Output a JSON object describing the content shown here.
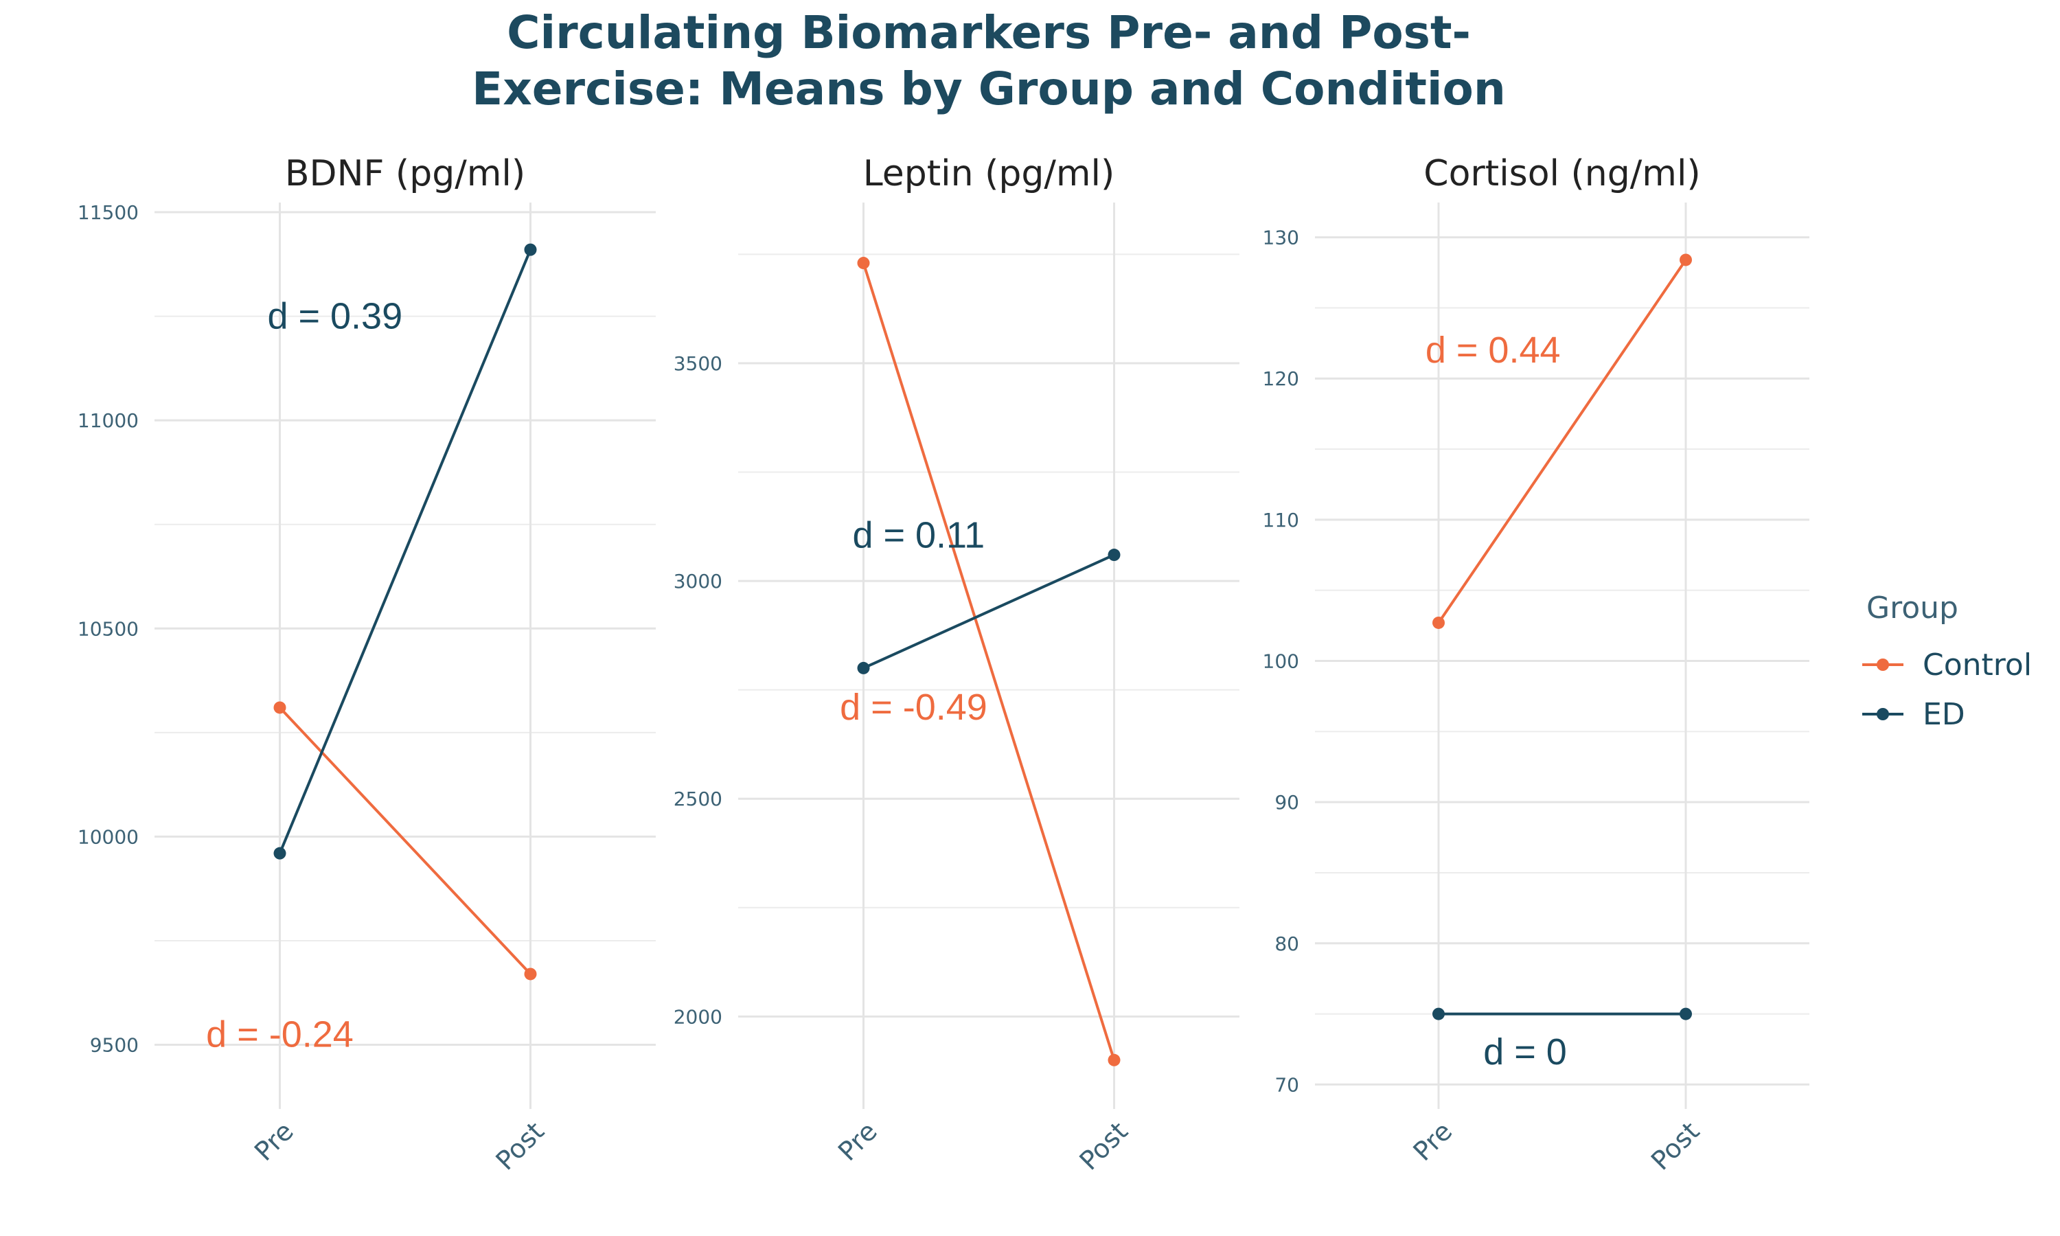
{
  "title_lines": [
    "Circulating Biomarkers Pre- and Post-",
    "Exercise: Means by Group and Condition"
  ],
  "colors": {
    "Control": "#ef6b3f",
    "ED": "#1a4a60"
  },
  "legend": {
    "title": "Group",
    "items": [
      "Control",
      "ED"
    ]
  },
  "chart_data": [
    {
      "type": "line",
      "title": "BDNF (pg/ml)",
      "categories": [
        "Pre",
        "Post"
      ],
      "ylim": [
        9425,
        11510
      ],
      "yticks": [
        9500,
        10000,
        10500,
        11000,
        11500
      ],
      "grid": true,
      "series": [
        {
          "name": "Control",
          "values": [
            10310,
            9670
          ],
          "annotation": "d = -0.24",
          "annotation_pos": [
            1.0,
            9525
          ]
        },
        {
          "name": "ED",
          "values": [
            9960,
            11410
          ],
          "annotation": "d = 0.39",
          "annotation_pos": [
            1.22,
            11250
          ]
        }
      ]
    },
    {
      "type": "line",
      "title": "Leptin (pg/ml)",
      "categories": [
        "Pre",
        "Post"
      ],
      "ylim": [
        1835,
        3790
      ],
      "yticks": [
        2000,
        2500,
        3000,
        3500
      ],
      "grid": true,
      "series": [
        {
          "name": "Control",
          "values": [
            3730,
            1900
          ],
          "annotation": "d = -0.49",
          "annotation_pos": [
            1.2,
            2710
          ]
        },
        {
          "name": "ED",
          "values": [
            2800,
            3060
          ],
          "annotation": "d = 0.11",
          "annotation_pos": [
            1.22,
            3105
          ]
        }
      ]
    },
    {
      "type": "line",
      "title": "Cortisol (ng/ml)",
      "categories": [
        "Pre",
        "Post"
      ],
      "ylim": [
        69,
        131
      ],
      "yticks": [
        70,
        80,
        90,
        100,
        110,
        120,
        130
      ],
      "grid": true,
      "series": [
        {
          "name": "Control",
          "values": [
            102.7,
            128.4
          ],
          "annotation": "d = 0.44",
          "annotation_pos": [
            1.22,
            122
          ]
        },
        {
          "name": "ED",
          "values": [
            75,
            75
          ],
          "annotation": "d = 0",
          "annotation_pos": [
            1.35,
            72.3
          ]
        }
      ]
    }
  ]
}
